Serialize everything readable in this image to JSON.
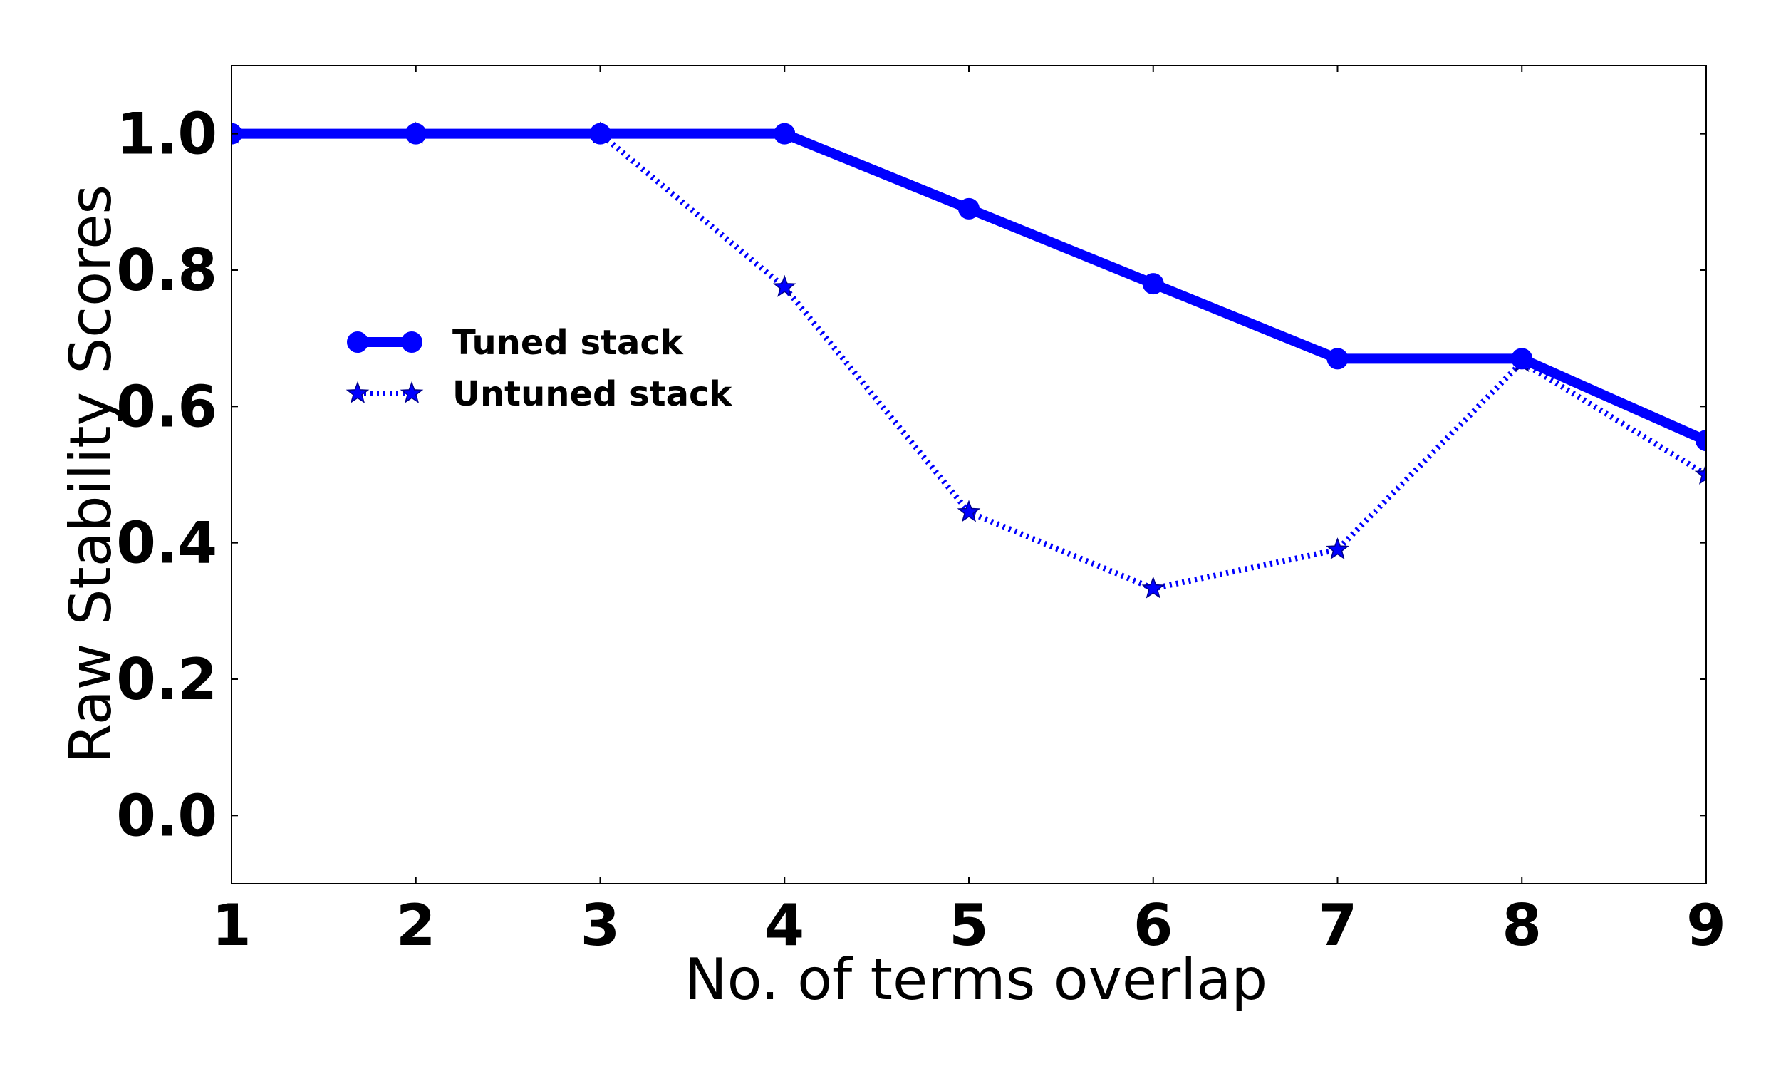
{
  "chart_data": {
    "type": "line",
    "title": "",
    "xlabel": "No. of terms overlap",
    "ylabel": "Raw Stability Scores",
    "x": [
      1,
      2,
      3,
      4,
      5,
      6,
      7,
      8,
      9
    ],
    "x_ticks": [
      "1",
      "2",
      "3",
      "4",
      "5",
      "6",
      "7",
      "8",
      "9"
    ],
    "y_ticks": [
      "0.0",
      "0.2",
      "0.4",
      "0.6",
      "0.8",
      "1.0"
    ],
    "xlim": [
      1,
      9
    ],
    "ylim": [
      -0.1,
      1.1
    ],
    "grid": false,
    "legend_position": "upper-left",
    "series": [
      {
        "name": "Tuned stack",
        "values": [
          1.0,
          1.0,
          1.0,
          1.0,
          0.89,
          0.78,
          0.67,
          0.67,
          0.55
        ],
        "color": "#0000ff",
        "line_style": "solid",
        "marker": "circle"
      },
      {
        "name": "Untuned stack",
        "values": [
          1.0,
          1.0,
          1.0,
          0.775,
          0.445,
          0.333,
          0.39,
          0.665,
          0.5
        ],
        "color": "#0000ff",
        "line_style": "dotted",
        "marker": "star"
      }
    ]
  }
}
